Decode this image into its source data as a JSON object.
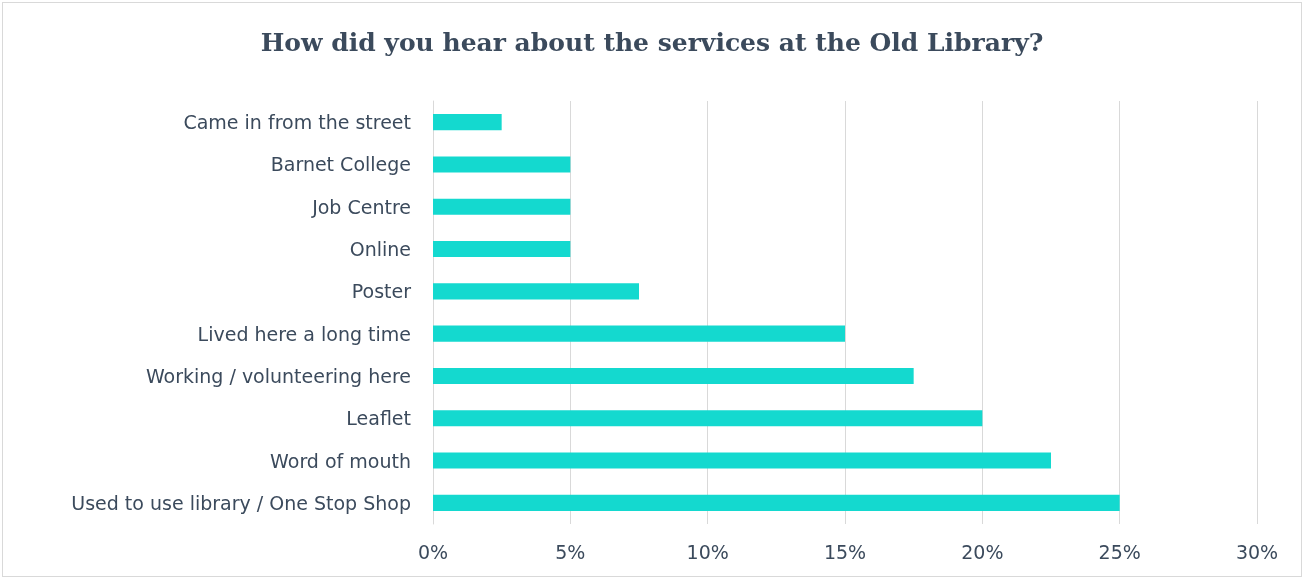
{
  "chart_data": {
    "type": "bar",
    "orientation": "horizontal",
    "title": "How did you hear about the services at the Old Library?",
    "categories": [
      "Came in from the street",
      "Barnet College",
      "Job Centre",
      "Online",
      "Poster",
      "Lived here a long time",
      "Working / volunteering here",
      "Leaflet",
      "Word of mouth",
      "Used to use library / One Stop Shop"
    ],
    "values": [
      2.5,
      5,
      5,
      5,
      7.5,
      15,
      17.5,
      20,
      22.5,
      25
    ],
    "color": "#14d9cf",
    "xlim": [
      0,
      30
    ],
    "xticks": [
      {
        "value": 0,
        "label": "0%"
      },
      {
        "value": 5,
        "label": "5%"
      },
      {
        "value": 10,
        "label": "10%"
      },
      {
        "value": 15,
        "label": "15%"
      },
      {
        "value": 20,
        "label": "20%"
      },
      {
        "value": 25,
        "label": "25%"
      },
      {
        "value": 30,
        "label": "30%"
      }
    ],
    "grid": "x"
  }
}
